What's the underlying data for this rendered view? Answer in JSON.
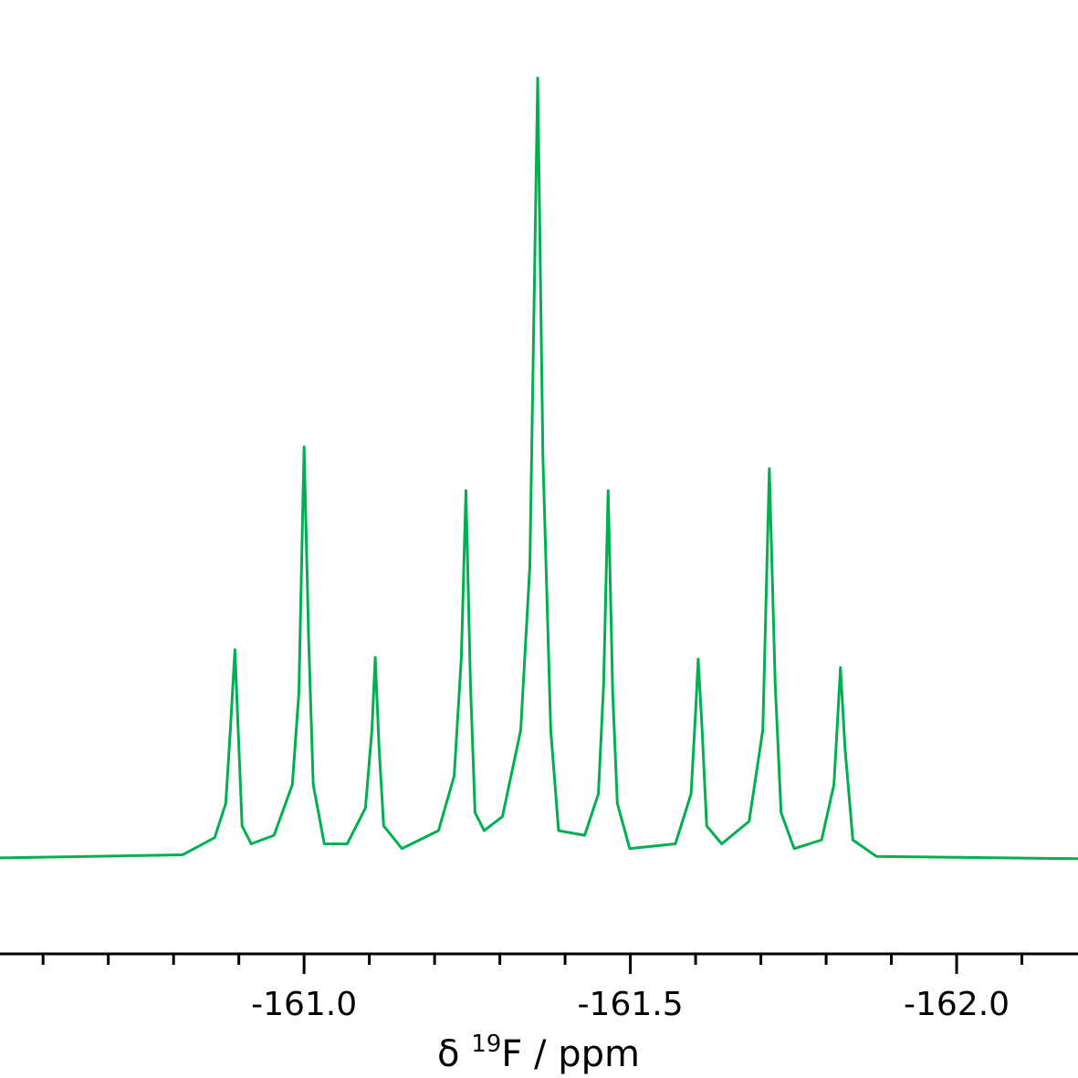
{
  "chart_data": {
    "type": "line",
    "xlabel": {
      "prefix": "δ ",
      "sup": "19",
      "suffix": "F / ppm"
    },
    "x": [
      -160.534,
      -160.814,
      -160.863,
      -160.88,
      -160.887,
      -160.894,
      -160.899,
      -160.905,
      -160.919,
      -160.954,
      -160.982,
      -160.992,
      -161.0,
      -161.007,
      -161.014,
      -161.031,
      -161.066,
      -161.094,
      -161.104,
      -161.109,
      -161.115,
      -161.122,
      -161.15,
      -161.206,
      -161.23,
      -161.241,
      -161.248,
      -161.255,
      -161.262,
      -161.276,
      -161.304,
      -161.332,
      -161.346,
      -161.358,
      -161.366,
      -161.378,
      -161.39,
      -161.43,
      -161.451,
      -161.459,
      -161.466,
      -161.473,
      -161.48,
      -161.499,
      -161.569,
      -161.593,
      -161.6,
      -161.604,
      -161.61,
      -161.617,
      -161.64,
      -161.682,
      -161.703,
      -161.713,
      -161.722,
      -161.731,
      -161.751,
      -161.793,
      -161.812,
      -161.822,
      -161.829,
      -161.841,
      -161.877,
      -162.186
    ],
    "series": [
      {
        "color": "#00b050",
        "values": [
          0,
          0.4,
          2.6,
          7.0,
          16.4,
          26.7,
          16.4,
          4.1,
          1.8,
          2.9,
          9.4,
          21.1,
          52.7,
          28.1,
          9.4,
          1.8,
          1.8,
          6.4,
          16.4,
          25.7,
          14.0,
          4.1,
          1.2,
          3.5,
          10.5,
          25.7,
          47.1,
          22.2,
          5.8,
          3.5,
          5.3,
          16.4,
          37.4,
          100,
          51.5,
          16.4,
          3.5,
          2.9,
          8.2,
          22.2,
          47.1,
          21.1,
          7.0,
          1.2,
          1.8,
          8.2,
          18.7,
          25.5,
          16.4,
          4.1,
          1.8,
          4.7,
          16.4,
          49.9,
          22.2,
          5.8,
          1.2,
          2.3,
          9.4,
          24.4,
          14.0,
          2.3,
          0.2,
          -0.1
        ]
      }
    ],
    "xlim": [
      -160.534,
      -162.186
    ],
    "ylim": [
      -12.3,
      110
    ],
    "xticks": [
      {
        "value": -161,
        "label": "-161.0"
      },
      {
        "value": -161.5,
        "label": "-161.5"
      },
      {
        "value": -162,
        "label": "-162.0"
      }
    ],
    "xminorticks": [
      -160.6,
      -160.7,
      -160.8,
      -160.9,
      -161.1,
      -161.2,
      -161.3,
      -161.4,
      -161.6,
      -161.7,
      -161.8,
      -161.9,
      -162.1
    ]
  }
}
